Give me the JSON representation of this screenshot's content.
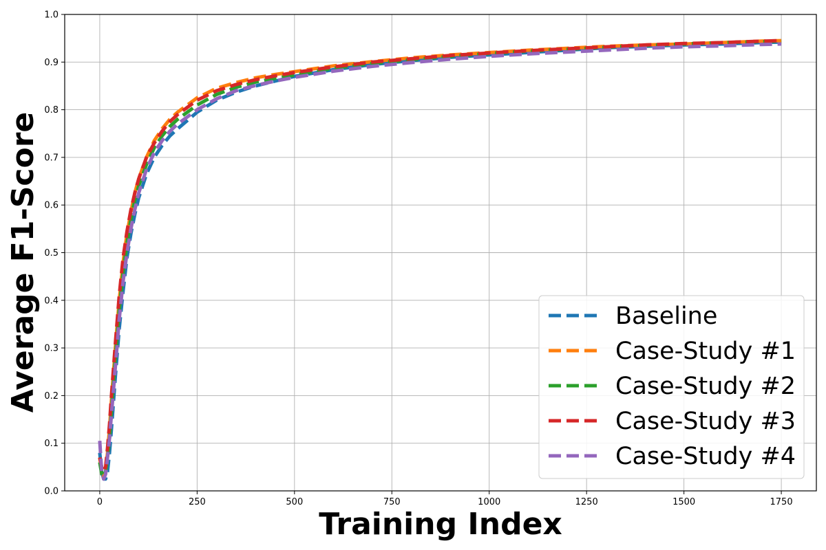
{
  "chart_data": {
    "type": "line",
    "xlabel": "Training Index",
    "ylabel": "Average F1-Score",
    "xlim": [
      -90,
      1840
    ],
    "ylim": [
      0.0,
      1.0
    ],
    "xticks": [
      0,
      250,
      500,
      750,
      1000,
      1250,
      1500,
      1750
    ],
    "yticks": [
      0.0,
      0.1,
      0.2,
      0.3,
      0.4,
      0.5,
      0.6,
      0.7,
      0.8,
      0.9,
      1.0
    ],
    "xtick_labels": [
      "0",
      "250",
      "500",
      "750",
      "1000",
      "1250",
      "1500",
      "1750"
    ],
    "ytick_labels": [
      "0.0",
      "0.1",
      "0.2",
      "0.3",
      "0.4",
      "0.5",
      "0.6",
      "0.7",
      "0.8",
      "0.9",
      "1.0"
    ],
    "grid": true,
    "legend_position": "bottom-right",
    "line_style": "dashed",
    "series": [
      {
        "name": "Baseline",
        "color": "#1f77b4",
        "x": [
          0,
          5,
          10,
          15,
          20,
          25,
          30,
          40,
          50,
          60,
          70,
          80,
          90,
          100,
          120,
          140,
          160,
          180,
          200,
          250,
          300,
          350,
          400,
          450,
          500,
          600,
          700,
          800,
          900,
          1000,
          1100,
          1200,
          1300,
          1400,
          1500,
          1600,
          1700,
          1750
        ],
        "y": [
          0.08,
          0.04,
          0.025,
          0.025,
          0.04,
          0.08,
          0.13,
          0.24,
          0.34,
          0.42,
          0.49,
          0.54,
          0.58,
          0.615,
          0.665,
          0.7,
          0.725,
          0.745,
          0.76,
          0.795,
          0.82,
          0.837,
          0.85,
          0.86,
          0.87,
          0.884,
          0.895,
          0.903,
          0.91,
          0.915,
          0.92,
          0.925,
          0.93,
          0.933,
          0.936,
          0.938,
          0.941,
          0.942
        ]
      },
      {
        "name": "Case-Study #1",
        "color": "#ff7f0e",
        "x": [
          0,
          5,
          10,
          15,
          20,
          25,
          30,
          40,
          50,
          60,
          70,
          80,
          90,
          100,
          120,
          140,
          160,
          180,
          200,
          250,
          300,
          350,
          400,
          450,
          500,
          600,
          700,
          800,
          900,
          1000,
          1100,
          1200,
          1300,
          1400,
          1500,
          1600,
          1700,
          1750
        ],
        "y": [
          0.07,
          0.04,
          0.03,
          0.04,
          0.08,
          0.13,
          0.19,
          0.3,
          0.4,
          0.48,
          0.54,
          0.585,
          0.625,
          0.655,
          0.7,
          0.735,
          0.76,
          0.78,
          0.795,
          0.825,
          0.845,
          0.857,
          0.867,
          0.874,
          0.88,
          0.892,
          0.901,
          0.909,
          0.915,
          0.92,
          0.925,
          0.929,
          0.933,
          0.936,
          0.938,
          0.941,
          0.944,
          0.945
        ]
      },
      {
        "name": "Case-Study #2",
        "color": "#2ca02c",
        "x": [
          0,
          5,
          10,
          15,
          20,
          25,
          30,
          40,
          50,
          60,
          70,
          80,
          90,
          100,
          120,
          140,
          160,
          180,
          200,
          250,
          300,
          350,
          400,
          450,
          500,
          600,
          700,
          800,
          900,
          1000,
          1100,
          1200,
          1300,
          1400,
          1500,
          1600,
          1700,
          1750
        ],
        "y": [
          0.06,
          0.035,
          0.03,
          0.04,
          0.07,
          0.11,
          0.17,
          0.28,
          0.38,
          0.46,
          0.52,
          0.57,
          0.61,
          0.64,
          0.685,
          0.72,
          0.745,
          0.765,
          0.78,
          0.81,
          0.832,
          0.847,
          0.858,
          0.866,
          0.873,
          0.887,
          0.897,
          0.905,
          0.912,
          0.918,
          0.923,
          0.927,
          0.931,
          0.935,
          0.938,
          0.941,
          0.943,
          0.944
        ]
      },
      {
        "name": "Case-Study #3",
        "color": "#d62728",
        "x": [
          0,
          5,
          10,
          15,
          20,
          25,
          30,
          40,
          50,
          60,
          70,
          80,
          90,
          100,
          120,
          140,
          160,
          180,
          200,
          250,
          300,
          350,
          400,
          450,
          500,
          600,
          700,
          800,
          900,
          1000,
          1100,
          1200,
          1300,
          1400,
          1500,
          1600,
          1700,
          1750
        ],
        "y": [
          0.07,
          0.05,
          0.04,
          0.05,
          0.09,
          0.14,
          0.2,
          0.31,
          0.41,
          0.49,
          0.545,
          0.59,
          0.625,
          0.655,
          0.7,
          0.73,
          0.755,
          0.775,
          0.79,
          0.82,
          0.84,
          0.853,
          0.863,
          0.871,
          0.878,
          0.89,
          0.9,
          0.907,
          0.914,
          0.919,
          0.924,
          0.928,
          0.932,
          0.936,
          0.939,
          0.941,
          0.944,
          0.945
        ]
      },
      {
        "name": "Case-Study #4",
        "color": "#9467bd",
        "x": [
          0,
          5,
          10,
          15,
          20,
          25,
          30,
          40,
          50,
          60,
          70,
          80,
          90,
          100,
          120,
          140,
          160,
          180,
          200,
          250,
          300,
          350,
          400,
          450,
          500,
          600,
          700,
          800,
          900,
          1000,
          1100,
          1200,
          1300,
          1400,
          1500,
          1600,
          1700,
          1750
        ],
        "y": [
          0.105,
          0.04,
          0.025,
          0.035,
          0.07,
          0.11,
          0.16,
          0.26,
          0.36,
          0.44,
          0.5,
          0.55,
          0.59,
          0.625,
          0.675,
          0.71,
          0.735,
          0.755,
          0.77,
          0.8,
          0.823,
          0.84,
          0.851,
          0.86,
          0.868,
          0.881,
          0.891,
          0.899,
          0.906,
          0.912,
          0.917,
          0.921,
          0.925,
          0.929,
          0.932,
          0.934,
          0.937,
          0.938
        ]
      }
    ]
  }
}
